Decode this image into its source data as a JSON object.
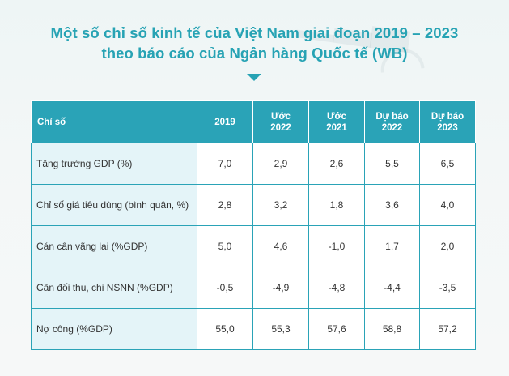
{
  "title": {
    "line1": "Một số chỉ số kinh tế của Việt Nam giai đoạn 2019 – 2023",
    "line2": "theo báo cáo của  Ngân hàng Quốc tế (WB)"
  },
  "colors": {
    "accent": "#27a3b4",
    "header_bg": "#2aa3b7",
    "label_bg": "#e4f4f8"
  },
  "table": {
    "headers": [
      {
        "line1": "Chỉ số",
        "line2": ""
      },
      {
        "line1": "2019",
        "line2": ""
      },
      {
        "line1": "Ước",
        "line2": "2022"
      },
      {
        "line1": "Ước",
        "line2": "2021"
      },
      {
        "line1": "Dự báo",
        "line2": "2022"
      },
      {
        "line1": "Dự báo",
        "line2": "2023"
      }
    ],
    "rows": [
      {
        "label": "Tăng trưởng GDP (%)",
        "values": [
          "7,0",
          "2,9",
          "2,6",
          "5,5",
          "6,5"
        ]
      },
      {
        "label": "Chỉ số giá tiêu dùng (bình quân, %)",
        "values": [
          "2,8",
          "3,2",
          "1,8",
          "3,6",
          "4,0"
        ]
      },
      {
        "label": "Cán cân vãng lai (%GDP)",
        "values": [
          "5,0",
          "4,6",
          "-1,0",
          "1,7",
          "2,0"
        ]
      },
      {
        "label": "Cân đối thu, chi NSNN (%GDP)",
        "values": [
          "-0,5",
          "-4,9",
          "-4,8",
          "-4,4",
          "-3,5"
        ]
      },
      {
        "label": "Nợ công (%GDP)",
        "values": [
          "55,0",
          "55,3",
          "57,6",
          "58,8",
          "57,2"
        ]
      }
    ]
  }
}
